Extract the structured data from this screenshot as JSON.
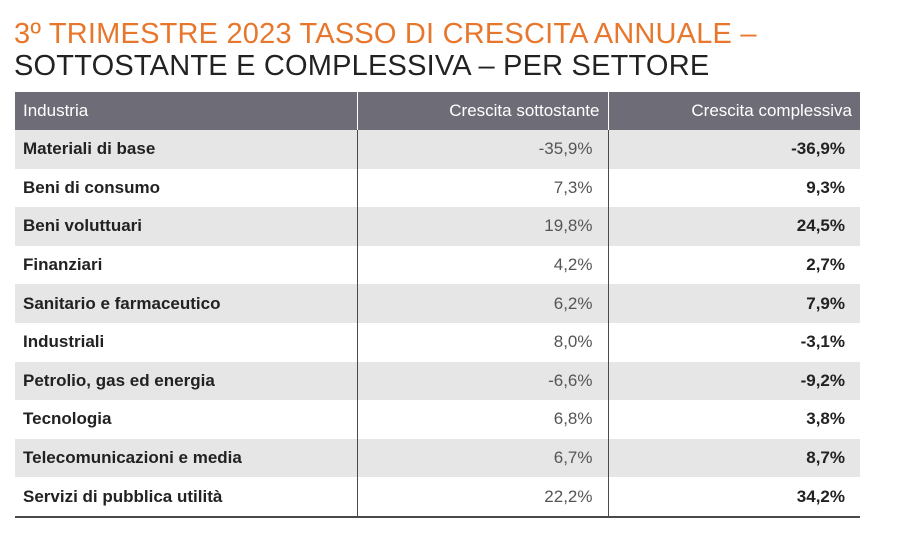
{
  "title": {
    "line1": "3º TRIMESTRE 2023 TASSO DI CRESCITA ANNUALE –",
    "line2": "SOTTOSTANTE E COMPLESSIVA – PER SETTORE"
  },
  "colors": {
    "accent": "#e8772e",
    "header_bg": "#6e6c77",
    "row_shade": "#e6e6e6"
  },
  "table": {
    "headers": {
      "industry": "Industria",
      "underlying": "Crescita sottostante",
      "overall": "Crescita complessiva"
    },
    "rows": [
      {
        "sector": "Materiali di base",
        "underlying": "-35,9%",
        "overall": "-36,9%"
      },
      {
        "sector": "Beni di consumo",
        "underlying": "7,3%",
        "overall": "9,3%"
      },
      {
        "sector": "Beni voluttuari",
        "underlying": "19,8%",
        "overall": "24,5%"
      },
      {
        "sector": "Finanziari",
        "underlying": "4,2%",
        "overall": "2,7%"
      },
      {
        "sector": "Sanitario e farmaceutico",
        "underlying": "6,2%",
        "overall": "7,9%"
      },
      {
        "sector": "Industriali",
        "underlying": "8,0%",
        "overall": "-3,1%"
      },
      {
        "sector": "Petrolio, gas ed energia",
        "underlying": "-6,6%",
        "overall": "-9,2%"
      },
      {
        "sector": "Tecnologia",
        "underlying": "6,8%",
        "overall": "3,8%"
      },
      {
        "sector": "Telecomunicazioni e media",
        "underlying": "6,7%",
        "overall": "8,7%"
      },
      {
        "sector": "Servizi di pubblica utilità",
        "underlying": "22,2%",
        "overall": "34,2%"
      }
    ]
  }
}
